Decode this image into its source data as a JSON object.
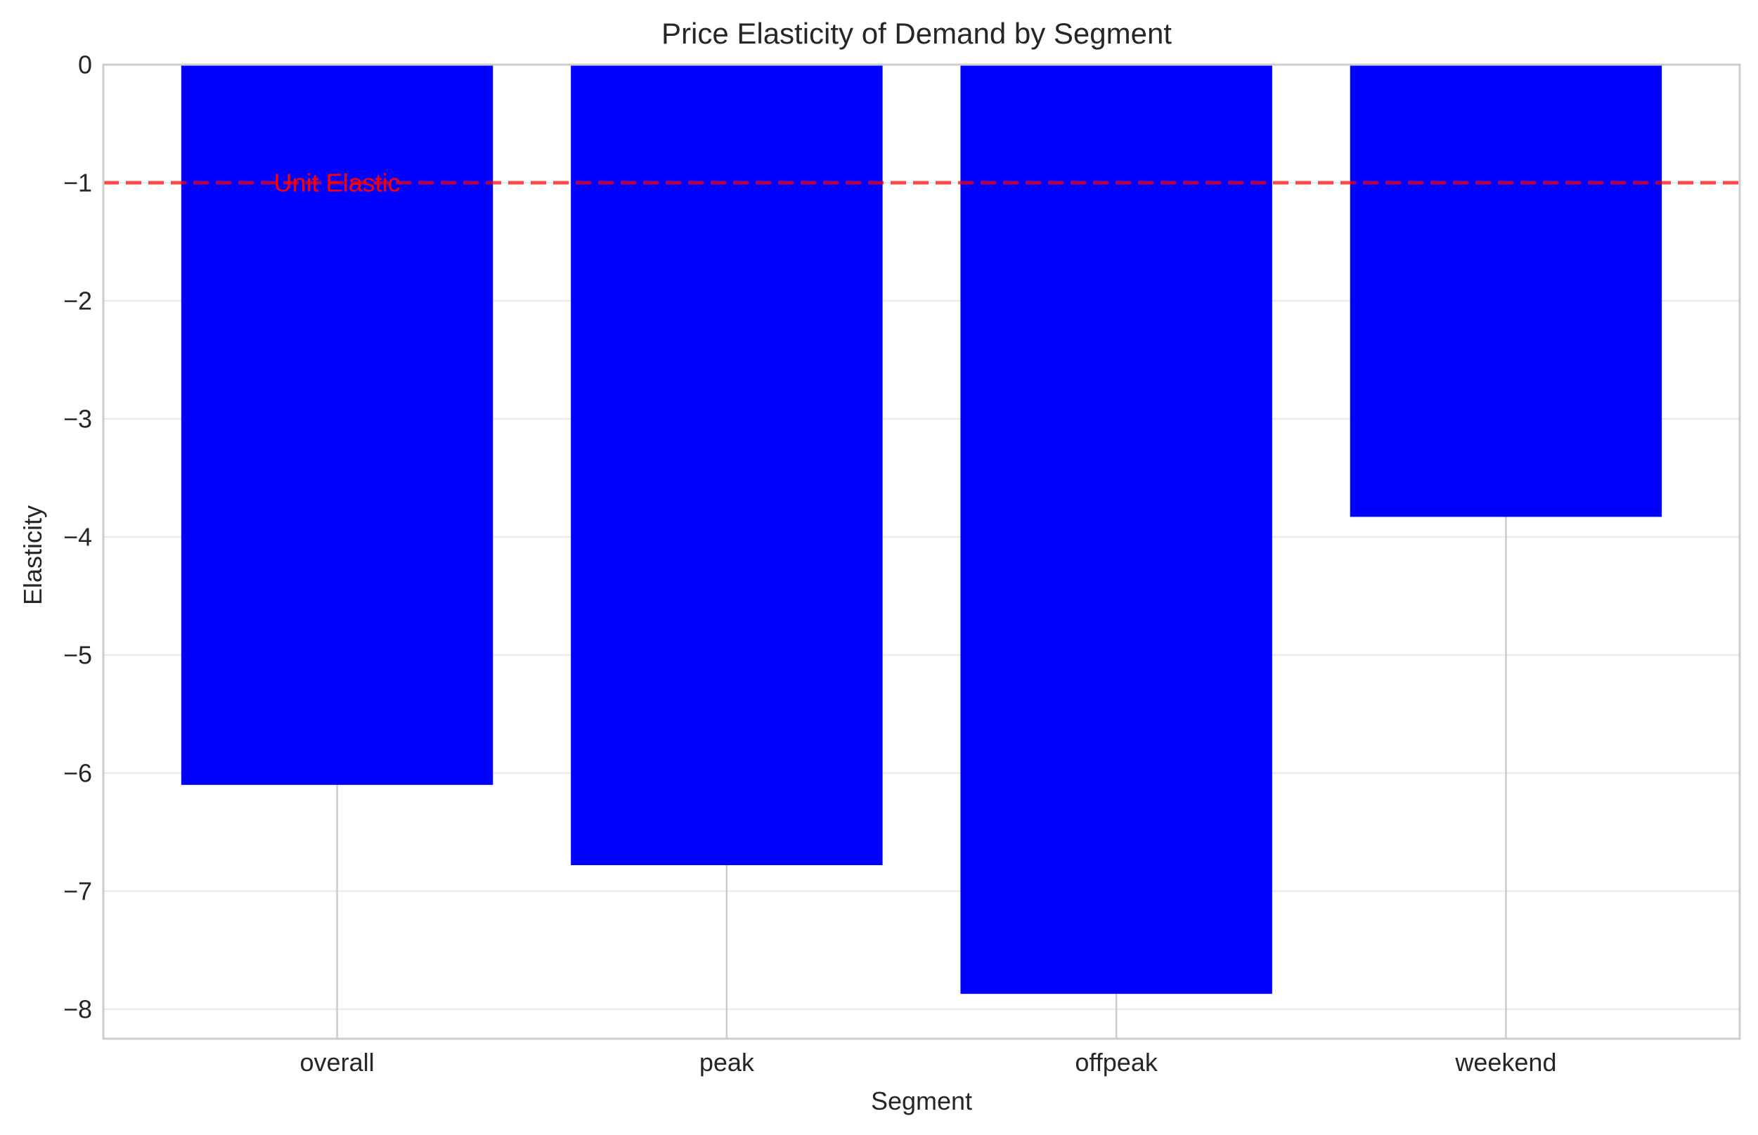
{
  "chart_data": {
    "type": "bar",
    "title": "Price Elasticity of Demand by Segment",
    "xlabel": "Segment",
    "ylabel": "Elasticity",
    "categories": [
      "overall",
      "peak",
      "offpeak",
      "weekend"
    ],
    "values": [
      -6.1,
      -6.78,
      -7.87,
      -3.83
    ],
    "ylim": [
      -8.25,
      0
    ],
    "yticks": [
      0,
      -1,
      -2,
      -3,
      -4,
      -5,
      -6,
      -7,
      -8
    ],
    "ytick_labels": [
      "0",
      "−1",
      "−2",
      "−3",
      "−4",
      "−5",
      "−6",
      "−7",
      "−8"
    ],
    "grid": true,
    "bar_color": "#0000ff",
    "reference_line": {
      "y": -1,
      "label": "Unit Elastic",
      "style": "dashed",
      "color": "#ff0000"
    }
  }
}
